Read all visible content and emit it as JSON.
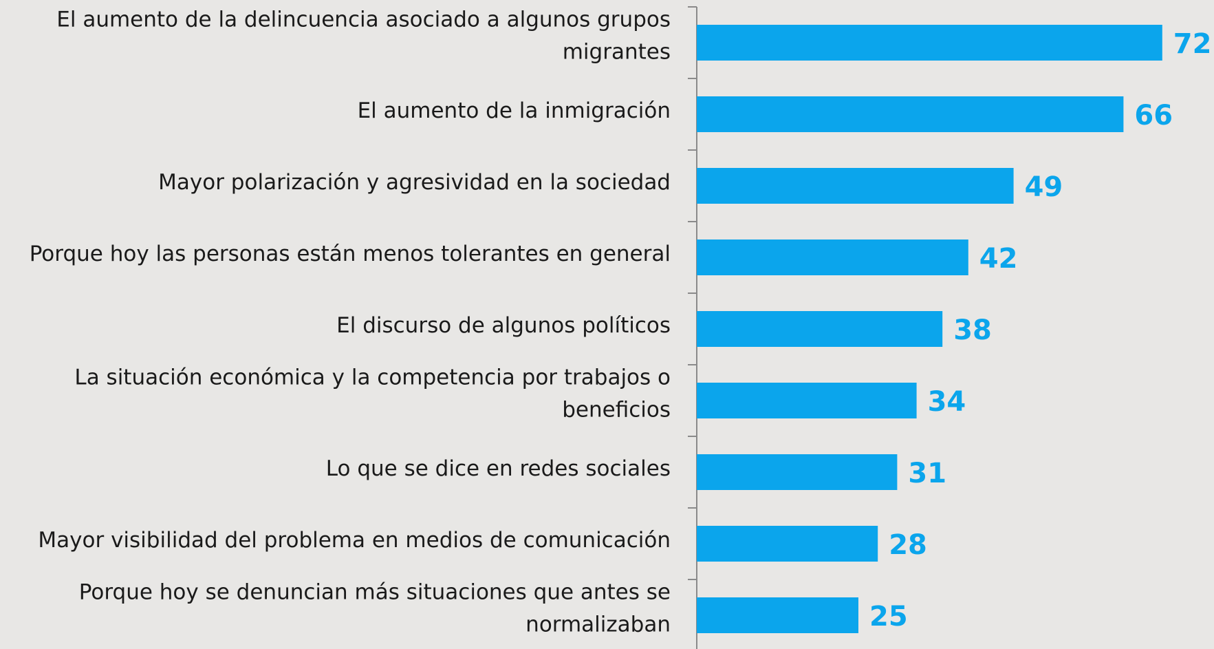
{
  "chart_data": {
    "type": "bar",
    "orientation": "horizontal",
    "categories": [
      "El aumento de la delincuencia asociado a algunos grupos migrantes",
      "El aumento de la inmigración",
      "Mayor polarización y agresividad en la sociedad",
      "Porque hoy las personas están menos tolerantes en general",
      "El discurso de algunos políticos",
      "La situación económica y la competencia por trabajos o beneficios",
      "Lo que se dice en redes sociales",
      "Mayor visibilidad del problema en medios de comunicación",
      "Porque hoy se denuncian más situaciones que antes se normalizaban"
    ],
    "values": [
      72,
      66,
      49,
      42,
      38,
      34,
      31,
      28,
      25
    ],
    "color": "#0ba5ec"
  }
}
